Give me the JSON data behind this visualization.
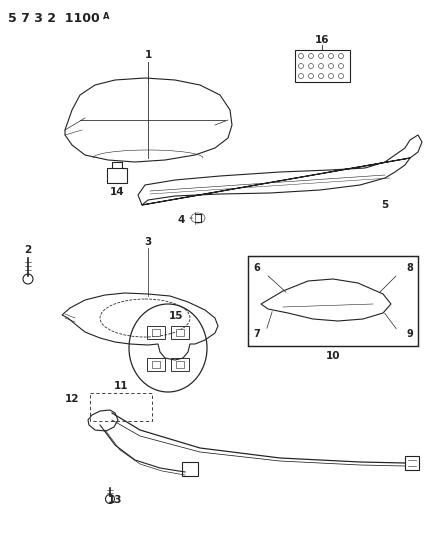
{
  "title": "5 7 3 2  1100",
  "bg_color": "#ffffff",
  "line_color": "#222222",
  "title_fontsize": 9,
  "label_fontsize": 7.5,
  "figsize": [
    4.29,
    5.33
  ],
  "dpi": 100
}
